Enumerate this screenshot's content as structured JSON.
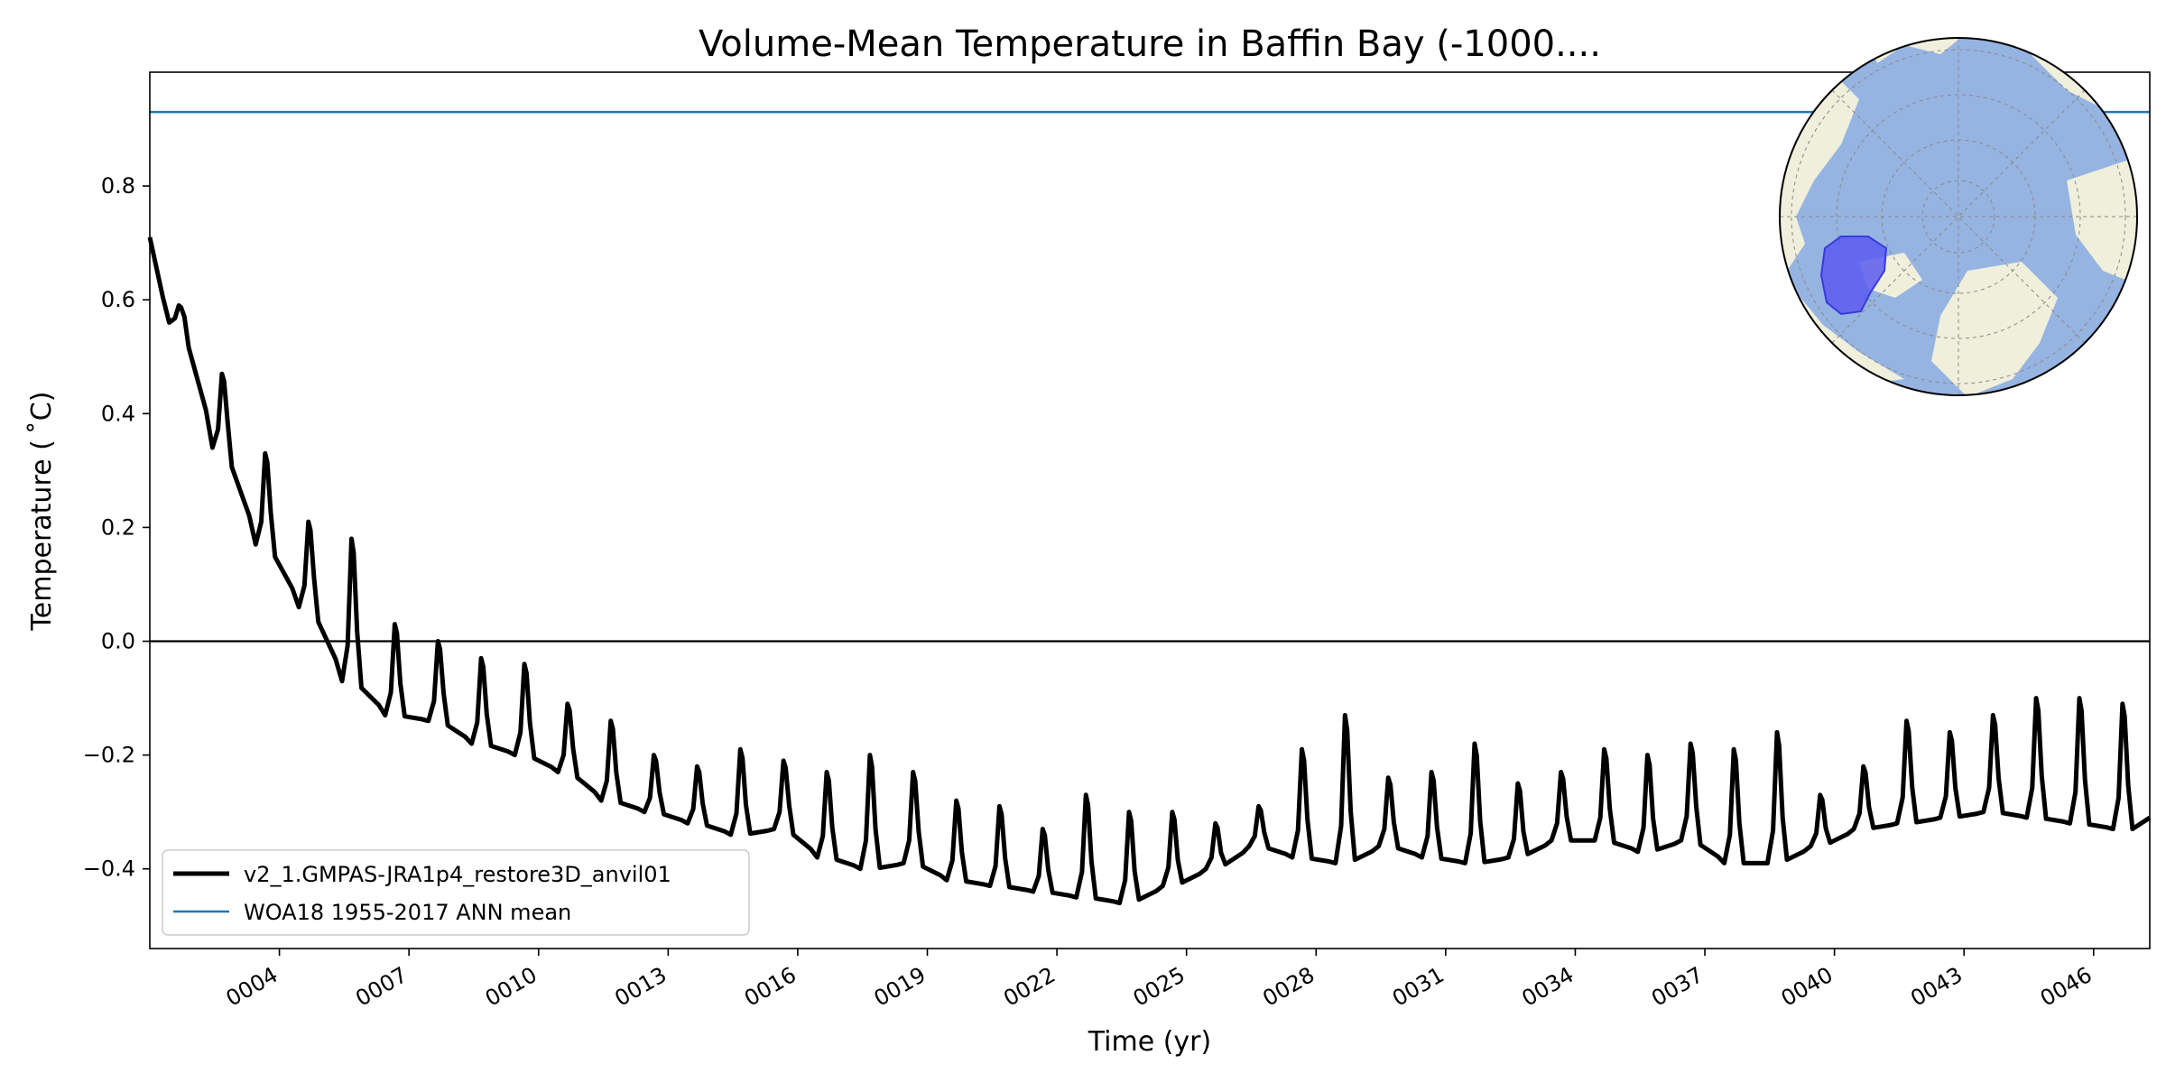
{
  "chart_data": {
    "type": "line",
    "title": "Volume-Mean Temperature in Baffin Bay (-1000....",
    "xlabel": "Time (yr)",
    "ylabel": "Temperature ( ˚C)",
    "xlim": [
      1.0,
      47.3
    ],
    "ylim": [
      -0.54,
      1.0
    ],
    "x_tick_values": [
      4,
      7,
      10,
      13,
      16,
      19,
      22,
      25,
      28,
      31,
      34,
      37,
      40,
      43,
      46
    ],
    "x_tick_labels": [
      "0004",
      "0007",
      "0010",
      "0013",
      "0016",
      "0019",
      "0022",
      "0025",
      "0028",
      "0031",
      "0034",
      "0037",
      "0040",
      "0043",
      "0046"
    ],
    "y_tick_values": [
      -0.4,
      -0.2,
      0.0,
      0.2,
      0.4,
      0.6,
      0.8
    ],
    "y_tick_labels": [
      "−0.4",
      "−0.2",
      "0.0",
      "0.2",
      "0.4",
      "0.6",
      "0.8"
    ],
    "zero_line": 0.0,
    "series": [
      {
        "name": "v2_1.GMPAS-JRA1p4_restore3D_anvil01",
        "color": "#000000",
        "annual_baseline": [
          0.56,
          0.34,
          0.17,
          0.06,
          -0.07,
          -0.13,
          -0.14,
          -0.18,
          -0.2,
          -0.23,
          -0.28,
          -0.3,
          -0.32,
          -0.34,
          -0.33,
          -0.38,
          -0.4,
          -0.39,
          -0.42,
          -0.43,
          -0.44,
          -0.45,
          -0.46,
          -0.43,
          -0.4,
          -0.36,
          -0.38,
          -0.39,
          -0.36,
          -0.38,
          -0.39,
          -0.38,
          -0.35,
          -0.35,
          -0.37,
          -0.35,
          -0.39,
          -0.39,
          -0.36,
          -0.33,
          -0.32,
          -0.31,
          -0.3,
          -0.31,
          -0.32,
          -0.33
        ],
        "annual_peak": [
          0.59,
          0.47,
          0.33,
          0.21,
          0.18,
          0.03,
          0.0,
          -0.03,
          -0.04,
          -0.11,
          -0.14,
          -0.2,
          -0.22,
          -0.19,
          -0.21,
          -0.23,
          -0.2,
          -0.23,
          -0.28,
          -0.29,
          -0.33,
          -0.27,
          -0.3,
          -0.3,
          -0.32,
          -0.29,
          -0.19,
          -0.13,
          -0.24,
          -0.23,
          -0.18,
          -0.25,
          -0.23,
          -0.19,
          -0.2,
          -0.18,
          -0.19,
          -0.16,
          -0.27,
          -0.22,
          -0.14,
          -0.16,
          -0.13,
          -0.1,
          -0.1,
          -0.11
        ],
        "start_value": 0.71,
        "end_value": -0.31
      },
      {
        "name": "WOA18 1955-2017 ANN mean",
        "color": "#1f77b4",
        "value": 0.93
      }
    ],
    "legend_position": "lower-left",
    "grid": false,
    "inset": {
      "type": "map",
      "projection": "north-polar-stereographic",
      "position": "top-right",
      "ocean_color": "#96b4e1",
      "land_color": "#efefdb",
      "region_color": "#5a5af0"
    }
  }
}
